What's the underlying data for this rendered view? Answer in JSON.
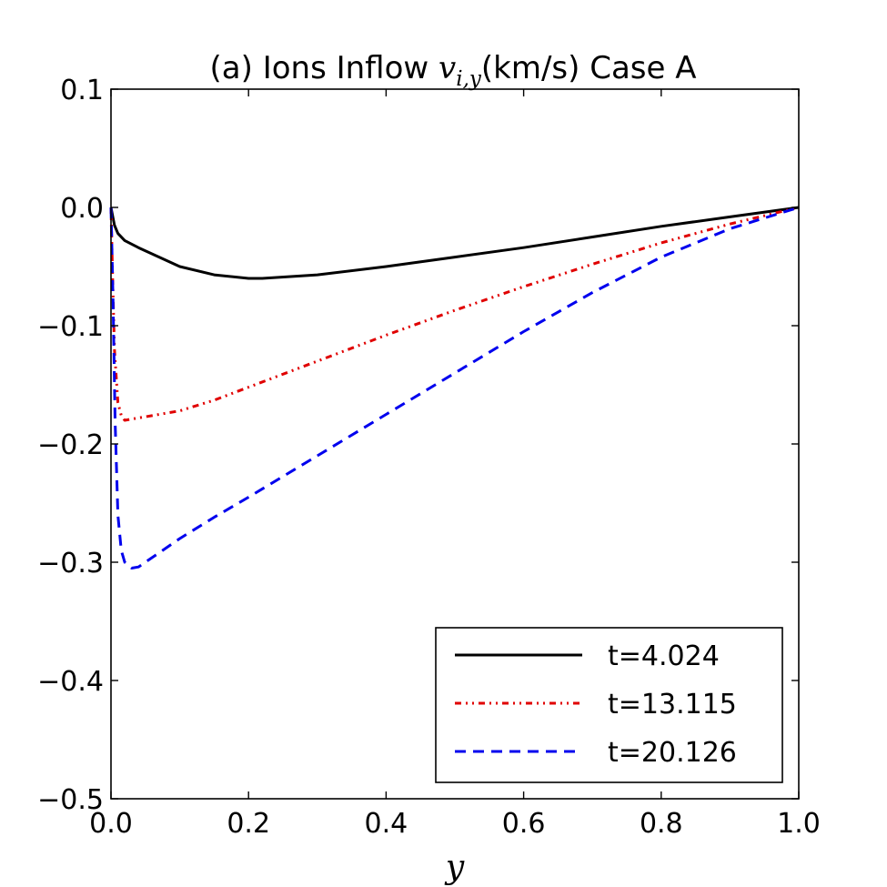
{
  "chart_data": {
    "type": "line",
    "title_prefix": "(a) Ions Inflow ",
    "title_var": "v",
    "title_sub": "i,y",
    "title_suffix": "(km/s)  Case A",
    "xlabel": "y",
    "ylabel": "",
    "xlim": [
      0.0,
      1.0
    ],
    "ylim": [
      -0.5,
      0.1
    ],
    "xticks": [
      0.0,
      0.2,
      0.4,
      0.6,
      0.8,
      1.0
    ],
    "xtick_labels": [
      "0.0",
      "0.2",
      "0.4",
      "0.6",
      "0.8",
      "1.0"
    ],
    "yticks": [
      0.1,
      0.0,
      -0.1,
      -0.2,
      -0.3,
      -0.4,
      -0.5
    ],
    "ytick_labels": [
      "0.1",
      "0.0",
      "−0.1",
      "−0.2",
      "−0.3",
      "−0.4",
      "−0.5"
    ],
    "legend_position": "lower-right",
    "series": [
      {
        "name": "t=4.024",
        "color": "#000000",
        "style": "solid",
        "x": [
          0.0,
          0.005,
          0.01,
          0.02,
          0.04,
          0.07,
          0.1,
          0.15,
          0.2,
          0.22,
          0.3,
          0.4,
          0.5,
          0.6,
          0.7,
          0.8,
          0.9,
          1.0
        ],
        "y": [
          0.0,
          -0.015,
          -0.022,
          -0.028,
          -0.034,
          -0.042,
          -0.05,
          -0.057,
          -0.06,
          -0.06,
          -0.057,
          -0.05,
          -0.042,
          -0.034,
          -0.025,
          -0.016,
          -0.008,
          0.0
        ]
      },
      {
        "name": "t=13.115",
        "color": "#e00000",
        "style": "dashdot",
        "x": [
          0.0,
          0.002,
          0.005,
          0.01,
          0.015,
          0.02,
          0.05,
          0.1,
          0.15,
          0.2,
          0.3,
          0.4,
          0.5,
          0.6,
          0.7,
          0.8,
          0.9,
          1.0
        ],
        "y": [
          0.0,
          -0.05,
          -0.12,
          -0.165,
          -0.176,
          -0.18,
          -0.177,
          -0.172,
          -0.163,
          -0.152,
          -0.13,
          -0.108,
          -0.087,
          -0.067,
          -0.048,
          -0.03,
          -0.014,
          0.0
        ]
      },
      {
        "name": "t=20.126",
        "color": "#0000ee",
        "style": "dashed",
        "x": [
          0.0,
          0.003,
          0.006,
          0.01,
          0.015,
          0.02,
          0.03,
          0.04,
          0.06,
          0.1,
          0.15,
          0.2,
          0.3,
          0.4,
          0.5,
          0.6,
          0.7,
          0.8,
          0.9,
          1.0
        ],
        "y": [
          0.0,
          -0.08,
          -0.18,
          -0.26,
          -0.29,
          -0.3,
          -0.305,
          -0.304,
          -0.296,
          -0.28,
          -0.262,
          -0.245,
          -0.21,
          -0.175,
          -0.14,
          -0.105,
          -0.072,
          -0.042,
          -0.018,
          0.0
        ]
      }
    ]
  }
}
